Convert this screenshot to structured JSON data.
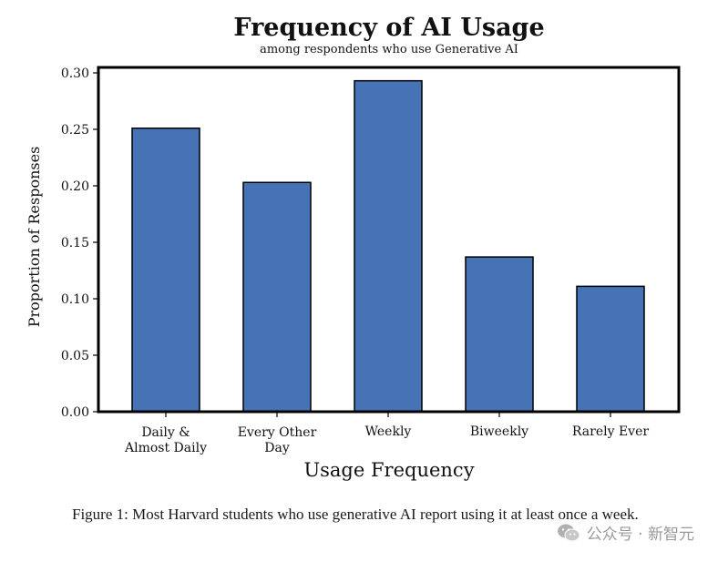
{
  "chart_data": {
    "type": "bar",
    "title": "Frequency of AI Usage",
    "subtitle": "among respondents who use Generative AI",
    "xlabel": "Usage Frequency",
    "ylabel": "Proportion of Responses",
    "categories": [
      "Daily & Almost Daily",
      "Every Other Day",
      "Weekly",
      "Biweekly",
      "Rarely Ever"
    ],
    "category_lines": [
      [
        "Daily &",
        "Almost Daily"
      ],
      [
        "Every Other",
        "Day"
      ],
      [
        "Weekly"
      ],
      [
        "Biweekly"
      ],
      [
        "Rarely Ever"
      ]
    ],
    "values": [
      0.251,
      0.203,
      0.293,
      0.137,
      0.111
    ],
    "ylim": [
      0,
      0.3
    ],
    "yticks": [
      0.0,
      0.05,
      0.1,
      0.15,
      0.2,
      0.25,
      0.3
    ],
    "ytick_labels": [
      "0.00",
      "0.05",
      "0.10",
      "0.15",
      "0.20",
      "0.25",
      "0.30"
    ],
    "bar_color": "#4573b5",
    "grid": false
  },
  "caption": "Figure 1: Most Harvard students who use generative AI report using it at least once a week.",
  "watermark": {
    "text": "公众号 · 新智元",
    "icon": "wechat-icon"
  }
}
